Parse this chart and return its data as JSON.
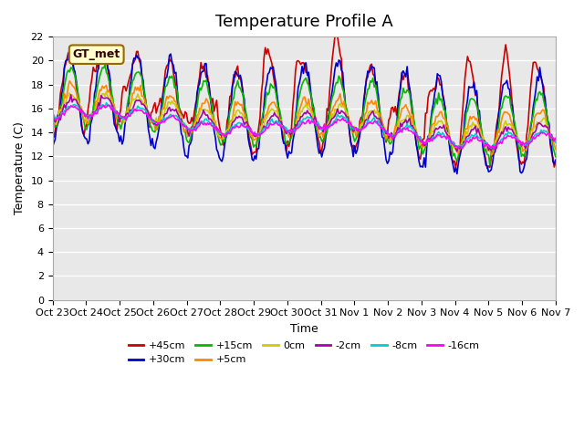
{
  "title": "Temperature Profile A",
  "xlabel": "Time",
  "ylabel": "Temperature (C)",
  "ylim": [
    0,
    22
  ],
  "yticks": [
    0,
    2,
    4,
    6,
    8,
    10,
    12,
    14,
    16,
    18,
    20,
    22
  ],
  "xtick_labels": [
    "Oct 23",
    "Oct 24",
    "Oct 25",
    "Oct 26",
    "Oct 27",
    "Oct 28",
    "Oct 29",
    "Oct 30",
    "Oct 31",
    "Nov 1",
    "Nov 2",
    "Nov 3",
    "Nov 4",
    "Nov 5",
    "Nov 6",
    "Nov 7"
  ],
  "series_labels": [
    "+45cm",
    "+30cm",
    "+15cm",
    "+5cm",
    "0cm",
    "-2cm",
    "-8cm",
    "-16cm"
  ],
  "series_colors": [
    "#cc0000",
    "#0000cc",
    "#00bb00",
    "#ff8800",
    "#cccc00",
    "#aa00aa",
    "#00cccc",
    "#ff00ff"
  ],
  "annotation_text": "GT_met",
  "annotation_bg": "#ffffcc",
  "annotation_border": "#996600",
  "bg_plot": "#e8e8e8",
  "bg_figure": "#ffffff",
  "grid_color": "#ffffff",
  "title_fontsize": 13
}
